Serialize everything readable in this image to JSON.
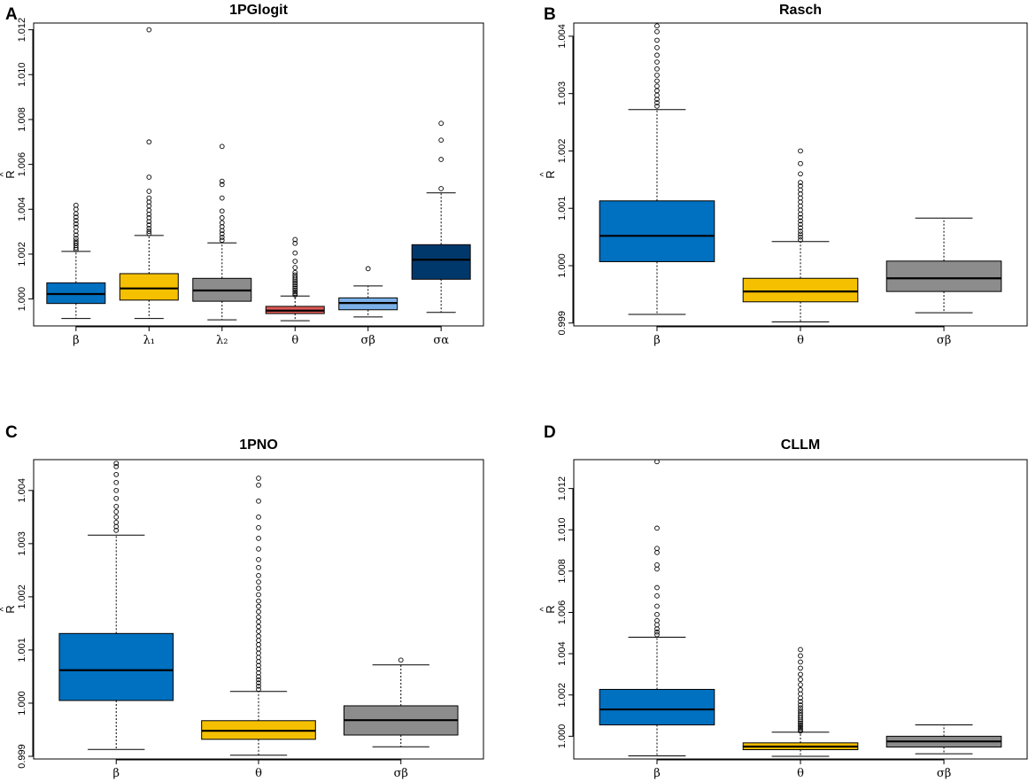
{
  "figure": {
    "background": "#ffffff"
  },
  "chart_data": [
    {
      "letter": "A",
      "title": "1PGlogit",
      "type": "box",
      "ylabel": "R̂",
      "ylabel_hat": "^",
      "ylabel_main": "R",
      "ylim": [
        0.9988,
        1.0123
      ],
      "yticks": [
        1.0,
        1.002,
        1.004,
        1.006,
        1.008,
        1.01,
        1.012
      ],
      "ytick_labels": [
        "1.000",
        "1.002",
        "1.004",
        "1.006",
        "1.008",
        "1.010",
        "1.012"
      ],
      "categories": [
        {
          "label": "β",
          "color": "#0070c0",
          "q1": 0.9998,
          "median": 1.00022,
          "q3": 1.00072,
          "whisker_low": 0.99913,
          "whisker_high": 1.00212,
          "outliers": [
            1.0022,
            1.00228,
            1.00238,
            1.00248,
            1.00258,
            1.0027,
            1.00285,
            1.00302,
            1.0032,
            1.00335,
            1.0035,
            1.00365,
            1.0038,
            1.004,
            1.00418
          ]
        },
        {
          "label": "λ₁",
          "color": "#f5c000",
          "q1": 0.99995,
          "median": 1.00047,
          "q3": 1.00113,
          "whisker_low": 0.99913,
          "whisker_high": 1.00283,
          "outliers": [
            1.00292,
            1.00302,
            1.00315,
            1.0033,
            1.00345,
            1.00362,
            1.00378,
            1.00395,
            1.00415,
            1.00432,
            1.0045,
            1.0048,
            1.00543,
            1.007,
            1.012
          ]
        },
        {
          "label": "λ₂",
          "color": "#8c8c8c",
          "q1": 0.9999,
          "median": 1.00038,
          "q3": 1.00092,
          "whisker_low": 0.99907,
          "whisker_high": 1.0025,
          "outliers": [
            1.00262,
            1.00275,
            1.0029,
            1.00305,
            1.00322,
            1.0034,
            1.00362,
            1.00392,
            1.0045,
            1.0051,
            1.00525,
            1.0068
          ]
        },
        {
          "label": "θ",
          "color": "#e05a55",
          "q1": 0.99935,
          "median": 0.99948,
          "q3": 0.99967,
          "whisker_low": 0.99903,
          "whisker_high": 1.00013,
          "outliers": [
            1.00018,
            1.00025,
            1.00032,
            1.0004,
            1.00048,
            1.00056,
            1.00064,
            1.00072,
            1.0008,
            1.00088,
            1.00097,
            1.00107,
            1.00118,
            1.0014,
            1.00168,
            1.00205,
            1.00248,
            1.00265
          ]
        },
        {
          "label": "σβ",
          "color": "#7cb0e8",
          "q1": 0.99952,
          "median": 0.99982,
          "q3": 1.00005,
          "whisker_low": 0.9992,
          "whisker_high": 1.00058,
          "outliers": [
            1.00135
          ]
        },
        {
          "label": "σα",
          "color": "#00386b",
          "q1": 1.00088,
          "median": 1.00175,
          "q3": 1.00242,
          "whisker_low": 0.9994,
          "whisker_high": 1.00473,
          "outliers": [
            1.00492,
            1.00622,
            1.00708,
            1.00783
          ]
        }
      ]
    },
    {
      "letter": "B",
      "title": "Rasch",
      "type": "box",
      "ylabel": "R̂",
      "ylabel_hat": "^",
      "ylabel_main": "R",
      "ylim": [
        0.99895,
        1.00423
      ],
      "yticks": [
        0.999,
        1.0,
        1.001,
        1.002,
        1.003,
        1.004
      ],
      "ytick_labels": [
        "0.999",
        "1.000",
        "1.001",
        "1.002",
        "1.003",
        "1.004"
      ],
      "categories": [
        {
          "label": "β",
          "color": "#0070c0",
          "q1": 1.00007,
          "median": 1.00052,
          "q3": 1.00113,
          "whisker_low": 0.99915,
          "whisker_high": 1.00272,
          "outliers": [
            1.00278,
            1.00284,
            1.0029,
            1.00297,
            1.00305,
            1.00313,
            1.00322,
            1.00332,
            1.00343,
            1.00355,
            1.00367,
            1.0038,
            1.00393,
            1.00408,
            1.00418
          ]
        },
        {
          "label": "θ",
          "color": "#f5c000",
          "q1": 0.99937,
          "median": 0.99955,
          "q3": 0.99978,
          "whisker_low": 0.99902,
          "whisker_high": 1.00042,
          "outliers": [
            1.00045,
            1.0005,
            1.00055,
            1.0006,
            1.00066,
            1.00072,
            1.00078,
            1.00084,
            1.0009,
            1.00097,
            1.00104,
            1.00111,
            1.00118,
            1.00125,
            1.00132,
            1.00139,
            1.00145,
            1.0016,
            1.00178,
            1.002
          ]
        },
        {
          "label": "σβ",
          "color": "#8c8c8c",
          "q1": 0.99955,
          "median": 0.99978,
          "q3": 1.00008,
          "whisker_low": 0.99918,
          "whisker_high": 1.00083,
          "outliers": []
        }
      ]
    },
    {
      "letter": "C",
      "title": "1PNO",
      "type": "box",
      "ylabel": "R̂",
      "ylabel_hat": "^",
      "ylabel_main": "R",
      "ylim": [
        0.99895,
        1.00458
      ],
      "yticks": [
        0.999,
        1.0,
        1.001,
        1.002,
        1.003,
        1.004
      ],
      "ytick_labels": [
        "0.999",
        "1.000",
        "1.001",
        "1.002",
        "1.003",
        "1.004"
      ],
      "categories": [
        {
          "label": "β",
          "color": "#0070c0",
          "q1": 1.00005,
          "median": 1.00062,
          "q3": 1.00131,
          "whisker_low": 0.99913,
          "whisker_high": 1.00316,
          "outliers": [
            1.00325,
            1.00332,
            1.0034,
            1.0035,
            1.0036,
            1.0037,
            1.00385,
            1.004,
            1.00415,
            1.0043,
            1.00445,
            1.00451
          ]
        },
        {
          "label": "θ",
          "color": "#f5c000",
          "q1": 0.99932,
          "median": 0.99948,
          "q3": 0.99967,
          "whisker_low": 0.99902,
          "whisker_high": 1.00022,
          "outliers": [
            1.00026,
            1.00032,
            1.00038,
            1.00044,
            1.0005,
            1.00057,
            1.00064,
            1.00071,
            1.00078,
            1.00086,
            1.00094,
            1.00102,
            1.0011,
            1.00118,
            1.00126,
            1.00135,
            1.00144,
            1.00153,
            1.00162,
            1.00172,
            1.00182,
            1.00192,
            1.00204,
            1.00216,
            1.00228,
            1.0024,
            1.00255,
            1.0027,
            1.0029,
            1.0031,
            1.0033,
            1.0035,
            1.0038,
            1.0041,
            1.00423
          ]
        },
        {
          "label": "σβ",
          "color": "#8c8c8c",
          "q1": 0.9994,
          "median": 0.99968,
          "q3": 0.99995,
          "whisker_low": 0.99918,
          "whisker_high": 1.00072,
          "outliers": [
            1.00081
          ]
        }
      ]
    },
    {
      "letter": "D",
      "title": "CLLM",
      "type": "box",
      "ylabel": "R̂",
      "ylabel_hat": "^",
      "ylabel_main": "R",
      "ylim": [
        0.9989,
        1.0134
      ],
      "yticks": [
        1.0,
        1.002,
        1.004,
        1.006,
        1.008,
        1.01,
        1.012
      ],
      "ytick_labels": [
        "1.000",
        "1.002",
        "1.004",
        "1.006",
        "1.008",
        "1.010",
        "1.012"
      ],
      "categories": [
        {
          "label": "β",
          "color": "#0070c0",
          "q1": 1.00055,
          "median": 1.0013,
          "q3": 1.00227,
          "whisker_low": 0.99905,
          "whisker_high": 1.0048,
          "outliers": [
            1.00492,
            1.00505,
            1.0052,
            1.0054,
            1.0056,
            1.0059,
            1.0063,
            1.0068,
            1.0072,
            1.0081,
            1.0083,
            1.0089,
            1.0091,
            1.01008,
            1.0133
          ]
        },
        {
          "label": "θ",
          "color": "#f5c000",
          "q1": 0.99935,
          "median": 0.9995,
          "q3": 0.99968,
          "whisker_low": 0.99903,
          "whisker_high": 1.0002,
          "outliers": [
            1.00025,
            1.00032,
            1.0004,
            1.00048,
            1.00056,
            1.00064,
            1.00073,
            1.00082,
            1.00092,
            1.00102,
            1.00113,
            1.00125,
            1.00138,
            1.00152,
            1.00168,
            1.00185,
            1.00205,
            1.00225,
            1.0025,
            1.00275,
            1.003,
            1.0033,
            1.0036,
            1.0039,
            1.0042
          ]
        },
        {
          "label": "σβ",
          "color": "#8c8c8c",
          "q1": 0.99948,
          "median": 0.99975,
          "q3": 1.0,
          "whisker_low": 0.99915,
          "whisker_high": 1.00055,
          "outliers": []
        }
      ]
    }
  ]
}
